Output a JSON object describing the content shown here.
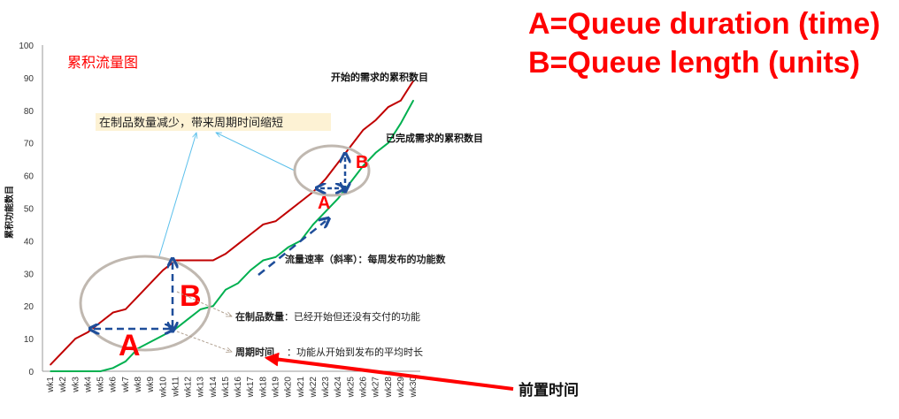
{
  "legend_box": {
    "line_a": "A=Queue duration (time)",
    "line_b": "B=Queue length (units)"
  },
  "annotations": {
    "wip_reduced": "在制品数量减少，带来周期时间缩短",
    "throughput": "流量速率（斜率）：每周发布的功能数",
    "wip_bold": "在制品数量",
    "wip_desc": "：已经开始但还没有交付的功能",
    "cycle_bold": "周期时间",
    "cycle_desc": "：功能从开始到发布的平均时长",
    "lead_time": "前置时间",
    "marker_a": "A",
    "marker_b": "B",
    "marker_a_small": "A",
    "marker_b_small": "B"
  },
  "colors": {
    "started": "#c00000",
    "completed": "#00b050",
    "markers": "#ff0000",
    "arrows": "#1f4e9a",
    "callout": "#fdf2d4"
  },
  "chart_data": {
    "type": "line",
    "title": "累积流量图",
    "xlabel": "",
    "ylabel": "累积功能数目",
    "ylim": [
      0,
      100
    ],
    "yticks": [
      0,
      10,
      20,
      30,
      40,
      50,
      60,
      70,
      80,
      90,
      100
    ],
    "grid": false,
    "categories": [
      "wk1",
      "wk2",
      "wk3",
      "wk4",
      "wk5",
      "wk6",
      "wk7",
      "wk8",
      "wk9",
      "wk10",
      "wk11",
      "wk12",
      "wk13",
      "wk14",
      "wk15",
      "wk16",
      "wk17",
      "wk18",
      "wk19",
      "wk20",
      "wk21",
      "wk22",
      "wk23",
      "wk24",
      "wk25",
      "wk26",
      "wk27",
      "wk28",
      "wk29",
      "wk30"
    ],
    "series": [
      {
        "name": "开始的需求的累积数目",
        "color": "#c00000",
        "values": [
          2,
          6,
          10,
          12,
          15,
          18,
          19,
          23,
          27,
          31,
          34,
          34,
          34,
          34,
          36,
          39,
          42,
          45,
          46,
          49,
          52,
          55,
          59,
          64,
          69,
          74,
          77,
          81,
          83,
          89
        ]
      },
      {
        "name": "已完成需求的累积数目",
        "color": "#00b050",
        "values": [
          0,
          0,
          0,
          0,
          0,
          1,
          3,
          7,
          9,
          11,
          13,
          16,
          19,
          20,
          25,
          27,
          31,
          34,
          35,
          38,
          40,
          45,
          49,
          53,
          58,
          63,
          67,
          70,
          76,
          83
        ]
      }
    ]
  }
}
